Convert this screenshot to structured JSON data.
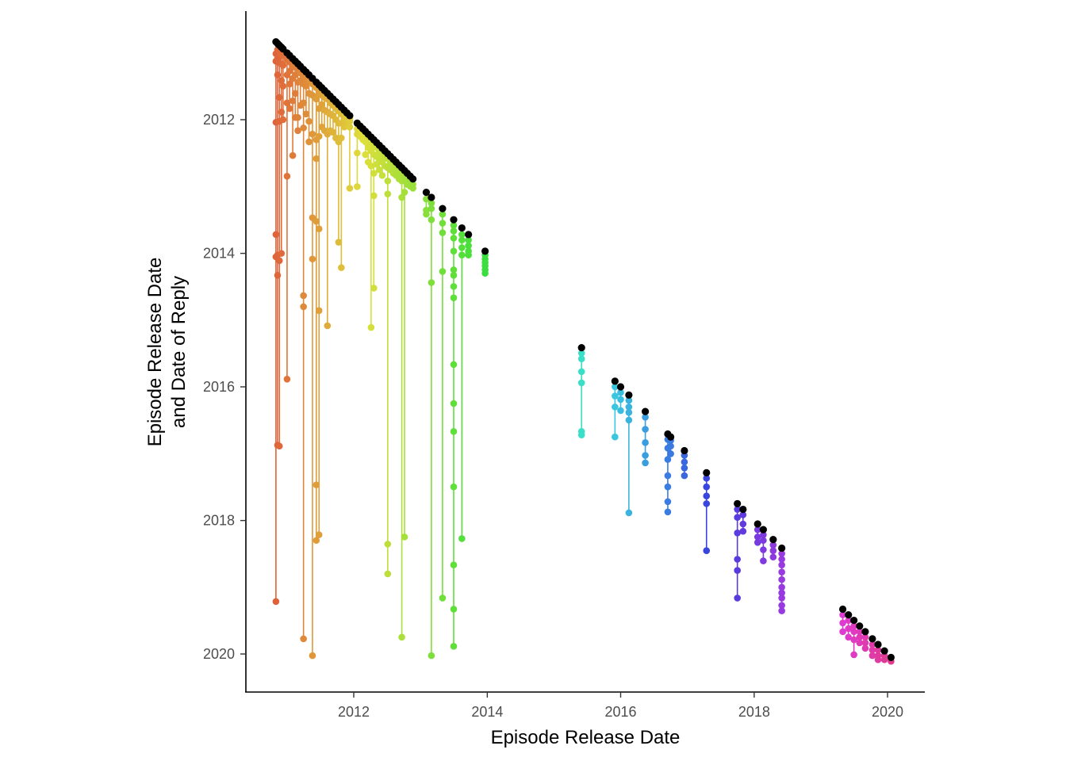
{
  "chart_data": {
    "type": "scatter",
    "title": "",
    "xlabel": "Episode Release Date",
    "ylabel_lines": [
      "Episode Release Date",
      "and Date of Reply"
    ],
    "x_ticks": [
      "2012",
      "2014",
      "2016",
      "2018",
      "2020"
    ],
    "y_ticks": [
      "2012",
      "2014",
      "2016",
      "2018",
      "2020"
    ],
    "xlim": [
      "2010-07-01",
      "2020-07-01"
    ],
    "ylim": [
      "2020-07-01",
      "2010-08-01"
    ],
    "y_axis_reversed": true,
    "grid": false,
    "legend": "none",
    "episode_point_color": "#000000",
    "notes": "Each episode plotted at (release date, release date) in black; vertical segment and colored points show reply dates for that episode; colour follows a hue ramp over release date.",
    "episodes": [
      {
        "date": "2010-11-01",
        "replies": [
          "2011-01-05",
          "2011-02-15",
          "2012-01-15",
          "2013-09-20",
          "2014-01-20",
          "2019-03-20"
        ]
      },
      {
        "date": "2010-11-10",
        "replies": [
          "2010-12-15",
          "2011-02-01",
          "2011-05-01",
          "2014-01-10",
          "2014-05-01",
          "2016-11-15"
        ]
      },
      {
        "date": "2010-11-20",
        "replies": [
          "2010-12-20",
          "2011-02-25",
          "2011-09-01",
          "2012-01-10",
          "2014-02-10",
          "2016-11-20"
        ]
      },
      {
        "date": "2010-12-01",
        "replies": [
          "2011-01-10",
          "2011-03-01",
          "2011-06-01",
          "2011-11-20",
          "2014-01-01"
        ]
      },
      {
        "date": "2010-12-10",
        "replies": [
          "2011-01-15",
          "2011-03-10",
          "2011-07-01",
          "2012-01-01"
        ]
      },
      {
        "date": "2011-01-01",
        "replies": [
          "2011-02-10",
          "2011-05-01",
          "2011-10-01",
          "2012-11-05",
          "2015-11-20"
        ]
      },
      {
        "date": "2011-01-15",
        "replies": [
          "2011-02-20",
          "2011-04-10",
          "2011-06-20",
          "2011-11-01"
        ]
      },
      {
        "date": "2011-02-01",
        "replies": [
          "2011-03-10",
          "2011-05-20",
          "2011-09-20",
          "2012-07-15"
        ]
      },
      {
        "date": "2011-02-15",
        "replies": [
          "2011-03-20",
          "2011-05-01",
          "2011-08-10",
          "2011-12-20"
        ]
      },
      {
        "date": "2011-03-01",
        "replies": [
          "2011-04-10",
          "2011-06-10",
          "2011-12-20",
          "2012-03-01"
        ]
      },
      {
        "date": "2011-03-15",
        "replies": [
          "2011-04-20",
          "2011-06-01",
          "2011-10-15"
        ]
      },
      {
        "date": "2011-04-01",
        "replies": [
          "2011-05-01",
          "2011-06-20",
          "2011-10-01",
          "2012-02-15",
          "2014-08-20",
          "2014-10-20",
          "2019-10-10"
        ]
      },
      {
        "date": "2011-04-15",
        "replies": [
          "2011-05-20",
          "2011-07-01",
          "2011-12-01"
        ]
      },
      {
        "date": "2011-05-01",
        "replies": [
          "2011-06-01",
          "2011-08-10",
          "2012-01-10",
          "2012-05-01"
        ]
      },
      {
        "date": "2011-05-20",
        "replies": [
          "2011-06-20",
          "2011-08-20",
          "2012-03-20",
          "2013-06-20",
          "2014-02-01",
          "2020-01-10"
        ]
      },
      {
        "date": "2011-06-10",
        "replies": [
          "2011-07-10",
          "2011-09-10",
          "2012-04-20",
          "2012-08-01",
          "2013-07-10",
          "2017-06-20",
          "2018-04-20"
        ]
      },
      {
        "date": "2011-06-25",
        "replies": [
          "2011-08-10",
          "2011-11-01",
          "2012-04-01",
          "2013-08-20",
          "2014-11-10",
          "2018-03-20"
        ]
      },
      {
        "date": "2011-07-10",
        "replies": [
          "2011-08-20",
          "2011-10-10",
          "2012-02-10"
        ]
      },
      {
        "date": "2011-07-25",
        "replies": [
          "2011-09-01",
          "2011-11-10",
          "2012-03-01"
        ]
      },
      {
        "date": "2011-08-10",
        "replies": [
          "2011-09-10",
          "2011-11-20",
          "2012-03-20",
          "2015-02-01"
        ]
      },
      {
        "date": "2011-08-25",
        "replies": [
          "2011-10-01",
          "2011-12-01",
          "2012-03-01"
        ]
      },
      {
        "date": "2011-09-10",
        "replies": [
          "2011-10-15",
          "2011-12-10",
          "2012-03-10"
        ]
      },
      {
        "date": "2011-09-25",
        "replies": [
          "2011-11-01",
          "2012-01-01",
          "2012-04-10"
        ]
      },
      {
        "date": "2011-10-10",
        "replies": [
          "2011-11-15",
          "2012-01-20",
          "2012-05-01",
          "2013-11-01"
        ]
      },
      {
        "date": "2011-10-25",
        "replies": [
          "2011-12-01",
          "2012-01-20",
          "2012-04-10",
          "2014-03-20"
        ]
      },
      {
        "date": "2011-11-10",
        "replies": [
          "2011-12-10",
          "2012-01-01",
          "2012-02-10"
        ]
      },
      {
        "date": "2011-11-25",
        "replies": [
          "2011-12-20",
          "2012-01-10",
          "2012-02-01"
        ]
      },
      {
        "date": "2011-12-10",
        "replies": [
          "2011-12-25",
          "2012-01-10",
          "2012-02-10",
          "2013-01-10"
        ]
      },
      {
        "date": "2012-01-20",
        "replies": [
          "2012-02-20",
          "2012-03-20",
          "2012-07-01",
          "2013-01-01"
        ]
      },
      {
        "date": "2012-02-05",
        "replies": [
          "2012-03-01",
          "2012-04-01"
        ]
      },
      {
        "date": "2012-02-20",
        "replies": [
          "2012-03-15",
          "2012-04-20"
        ]
      },
      {
        "date": "2012-03-05",
        "replies": [
          "2012-04-01",
          "2012-05-01",
          "2012-07-10"
        ]
      },
      {
        "date": "2012-03-20",
        "replies": [
          "2012-04-20",
          "2012-06-01",
          "2012-08-20"
        ]
      },
      {
        "date": "2012-04-05",
        "replies": [
          "2012-05-01",
          "2012-06-20",
          "2012-09-10",
          "2015-02-10"
        ]
      },
      {
        "date": "2012-04-20",
        "replies": [
          "2012-05-20",
          "2012-07-10",
          "2012-10-20",
          "2013-02-20",
          "2014-07-10"
        ]
      },
      {
        "date": "2012-05-05",
        "replies": [
          "2012-06-01",
          "2012-07-20",
          "2012-09-01"
        ]
      },
      {
        "date": "2012-05-20",
        "replies": [
          "2012-06-20",
          "2012-08-01",
          "2012-10-01"
        ]
      },
      {
        "date": "2012-06-05",
        "replies": [
          "2012-07-01",
          "2012-08-20",
          "2012-11-01"
        ]
      },
      {
        "date": "2012-06-20",
        "replies": [
          "2012-07-20",
          "2012-09-10"
        ]
      },
      {
        "date": "2012-07-05",
        "replies": [
          "2012-08-01",
          "2012-09-20",
          "2012-12-01",
          "2013-02-10",
          "2018-05-10",
          "2018-10-20"
        ]
      },
      {
        "date": "2012-07-20",
        "replies": [
          "2012-08-20",
          "2012-10-01"
        ]
      },
      {
        "date": "2012-08-05",
        "replies": [
          "2012-09-01",
          "2012-10-20"
        ]
      },
      {
        "date": "2012-08-20",
        "replies": [
          "2012-09-20",
          "2012-11-01"
        ]
      },
      {
        "date": "2012-09-05",
        "replies": [
          "2012-10-01",
          "2012-11-20"
        ]
      },
      {
        "date": "2012-09-20",
        "replies": [
          "2012-10-20",
          "2012-12-01",
          "2013-03-01",
          "2019-10-01"
        ]
      },
      {
        "date": "2012-10-05",
        "replies": [
          "2012-11-01",
          "2012-12-01",
          "2013-02-01",
          "2018-04-01"
        ]
      },
      {
        "date": "2012-10-20",
        "replies": [
          "2012-11-20",
          "2012-12-20"
        ]
      },
      {
        "date": "2012-11-05",
        "replies": [
          "2012-12-01",
          "2012-12-30"
        ]
      },
      {
        "date": "2012-11-20",
        "replies": [
          "2012-12-20",
          "2013-01-10"
        ]
      },
      {
        "date": "2013-02-01",
        "replies": [
          "2013-03-10",
          "2013-05-10",
          "2013-06-01"
        ]
      },
      {
        "date": "2013-03-01",
        "replies": [
          "2013-04-01",
          "2013-05-01",
          "2013-07-01",
          "2014-06-10",
          "2020-01-10"
        ]
      },
      {
        "date": "2013-05-01",
        "replies": [
          "2013-06-01",
          "2013-07-20",
          "2013-09-10",
          "2014-04-10",
          "2019-03-01"
        ]
      },
      {
        "date": "2013-07-01",
        "replies": [
          "2013-08-01",
          "2013-09-01",
          "2013-10-10",
          "2013-12-20",
          "2014-04-01",
          "2014-05-01",
          "2014-07-01",
          "2014-09-01",
          "2015-09-01",
          "2016-04-01",
          "2016-09-01",
          "2017-07-01",
          "2018-09-01",
          "2019-05-01",
          "2019-11-20"
        ]
      },
      {
        "date": "2013-08-15",
        "replies": [
          "2013-09-20",
          "2013-10-20",
          "2013-12-01",
          "2014-01-10",
          "2018-04-10"
        ]
      },
      {
        "date": "2013-09-20",
        "replies": [
          "2013-10-20",
          "2013-11-20",
          "2013-12-20",
          "2014-01-10"
        ]
      },
      {
        "date": "2013-12-20",
        "replies": [
          "2014-01-10",
          "2014-02-01",
          "2014-02-20",
          "2014-03-10",
          "2014-04-01",
          "2014-04-20"
        ]
      },
      {
        "date": "2015-06-01",
        "replies": [
          "2015-07-01",
          "2015-08-01",
          "2015-10-10",
          "2015-12-10",
          "2016-09-01",
          "2016-09-20"
        ]
      },
      {
        "date": "2015-12-01",
        "replies": [
          "2016-01-01",
          "2016-02-20",
          "2016-04-20",
          "2016-10-01"
        ]
      },
      {
        "date": "2016-01-01",
        "replies": [
          "2016-02-01",
          "2016-03-10",
          "2016-05-10"
        ]
      },
      {
        "date": "2016-02-15",
        "replies": [
          "2016-03-15",
          "2016-04-20",
          "2016-05-20",
          "2016-07-01",
          "2017-11-20"
        ]
      },
      {
        "date": "2016-05-15",
        "replies": [
          "2016-06-15",
          "2016-08-20",
          "2016-11-01",
          "2017-01-10",
          "2017-02-20"
        ]
      },
      {
        "date": "2016-09-15",
        "replies": [
          "2016-10-15",
          "2016-12-01",
          "2017-02-01",
          "2017-05-01",
          "2017-07-01",
          "2017-09-20",
          "2017-11-15"
        ]
      },
      {
        "date": "2016-10-01",
        "replies": [
          "2016-10-20",
          "2016-11-20",
          "2017-01-01"
        ]
      },
      {
        "date": "2016-12-15",
        "replies": [
          "2017-01-10",
          "2017-02-15",
          "2017-03-20",
          "2017-05-01"
        ]
      },
      {
        "date": "2017-04-15",
        "replies": [
          "2017-05-15",
          "2017-07-01",
          "2017-08-20",
          "2017-10-01",
          "2018-06-15"
        ]
      },
      {
        "date": "2017-10-01",
        "replies": [
          "2017-11-01",
          "2017-12-15",
          "2018-03-10",
          "2018-08-01",
          "2018-10-01",
          "2019-03-01"
        ]
      },
      {
        "date": "2017-11-01",
        "replies": [
          "2017-12-01",
          "2018-01-20",
          "2018-03-01"
        ]
      },
      {
        "date": "2018-01-20",
        "replies": [
          "2018-02-20",
          "2018-04-01",
          "2018-05-01"
        ]
      },
      {
        "date": "2018-02-20",
        "replies": [
          "2018-03-20",
          "2018-04-20",
          "2018-06-10",
          "2018-08-10"
        ]
      },
      {
        "date": "2018-04-15",
        "replies": [
          "2018-05-15",
          "2018-06-15",
          "2018-07-20"
        ]
      },
      {
        "date": "2018-06-01",
        "replies": [
          "2018-07-01",
          "2018-08-01",
          "2018-09-01",
          "2018-10-10",
          "2018-11-20",
          "2019-01-01",
          "2019-02-01",
          "2019-03-01",
          "2019-04-10",
          "2019-05-10"
        ]
      },
      {
        "date": "2019-05-01",
        "replies": [
          "2019-06-01",
          "2019-07-15",
          "2019-09-01"
        ]
      },
      {
        "date": "2019-06-01",
        "replies": [
          "2019-07-01",
          "2019-08-15",
          "2019-10-01"
        ]
      },
      {
        "date": "2019-07-01",
        "replies": [
          "2019-08-01",
          "2019-09-01",
          "2019-10-15",
          "2020-01-05"
        ]
      },
      {
        "date": "2019-08-01",
        "replies": [
          "2019-09-01",
          "2019-10-01",
          "2019-11-01"
        ]
      },
      {
        "date": "2019-09-01",
        "replies": [
          "2019-10-01",
          "2019-11-01",
          "2019-12-01"
        ]
      },
      {
        "date": "2019-10-10",
        "replies": [
          "2019-11-10",
          "2019-12-10",
          "2020-01-10"
        ]
      },
      {
        "date": "2019-11-10",
        "replies": [
          "2019-12-10",
          "2020-01-10",
          "2020-02-01"
        ]
      },
      {
        "date": "2019-12-15",
        "replies": [
          "2020-01-10",
          "2020-02-01"
        ]
      },
      {
        "date": "2020-01-20",
        "replies": [
          "2020-02-10"
        ]
      }
    ]
  }
}
